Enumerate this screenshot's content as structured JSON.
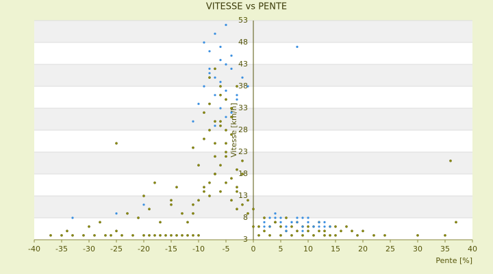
{
  "chart_data": {
    "type": "scatter",
    "title": "VITESSE vs PENTE",
    "x_label": "Pente [%]",
    "y_label": "Vitesse [km/h]",
    "xlim": [
      -40,
      40
    ],
    "xticks": [
      -40,
      -35,
      -30,
      -25,
      -20,
      -15,
      -10,
      -5,
      0,
      5,
      10,
      15,
      20,
      25,
      30,
      35,
      40
    ],
    "ylim": [
      3,
      53
    ],
    "yticks": [
      3,
      8,
      13,
      18,
      23,
      28,
      33,
      38,
      43,
      48,
      53
    ],
    "grid": true,
    "series": [
      {
        "color": "#8f8f10",
        "x": [
          -37,
          -35,
          -33,
          -31,
          -29,
          -27,
          -26,
          -24,
          -22,
          -20,
          -19,
          -18,
          -17,
          -16,
          -15,
          -14,
          -13,
          -12,
          -11,
          -10,
          -34,
          -30,
          -28,
          -25,
          -23,
          -21,
          -19,
          -17,
          -15,
          -13,
          -11,
          -9,
          -8,
          -7,
          -6,
          -5,
          -4,
          -3,
          -2,
          -1,
          -12,
          -11,
          -10,
          -9,
          -8,
          -7,
          -6,
          -5,
          -4,
          -3,
          -11,
          -10,
          -9,
          -8,
          -7,
          -6,
          -5,
          -4,
          -3,
          -2,
          -9,
          -8,
          -7,
          -6,
          -5,
          -4,
          -3,
          -8,
          -7,
          -6,
          -5,
          -4,
          -7,
          -6,
          -5,
          -25,
          -20,
          -18,
          -15,
          -14,
          0,
          1,
          2,
          3,
          4,
          5,
          6,
          7,
          8,
          9,
          10,
          11,
          12,
          13,
          14,
          15,
          16,
          17,
          18,
          19,
          20,
          22,
          24,
          2,
          4,
          6,
          8,
          10,
          12,
          14,
          1,
          3,
          5,
          7,
          9,
          11,
          13,
          15,
          0,
          -1,
          30,
          35,
          36,
          37,
          -2,
          -3
        ],
        "values": [
          4,
          4,
          4,
          4,
          4,
          4,
          4,
          4,
          4,
          4,
          4,
          4,
          4,
          4,
          4,
          4,
          4,
          4,
          4,
          4,
          5,
          6,
          7,
          5,
          9,
          8,
          10,
          7,
          12,
          9,
          11,
          15,
          13,
          18,
          14,
          16,
          12,
          10,
          11,
          9,
          7,
          9,
          12,
          14,
          16,
          18,
          20,
          22,
          17,
          15,
          24,
          20,
          26,
          28,
          22,
          30,
          25,
          27,
          19,
          21,
          32,
          34,
          30,
          36,
          28,
          33,
          38,
          40,
          42,
          38,
          35,
          31,
          25,
          29,
          23,
          25,
          13,
          16,
          11,
          15,
          6,
          6,
          5,
          6,
          7,
          6,
          5,
          6,
          5,
          6,
          5,
          6,
          5,
          5,
          4,
          6,
          5,
          6,
          5,
          4,
          5,
          4,
          4,
          8,
          7,
          8,
          7,
          6,
          7,
          6,
          4,
          4,
          4,
          4,
          4,
          4,
          4,
          4,
          10,
          12,
          4,
          4,
          21,
          7,
          18,
          14
        ]
      },
      {
        "color": "#3b8fe0",
        "x": [
          -9,
          -8,
          -7,
          -6,
          -5,
          -4,
          -8,
          -7,
          -6,
          -5,
          -9,
          -8,
          -7,
          -6,
          -5,
          -4,
          -3,
          -6,
          -5,
          -7,
          -2,
          -1,
          -4,
          -3,
          -10,
          -11,
          8,
          2,
          3,
          4,
          5,
          6,
          7,
          8,
          9,
          10,
          11,
          12,
          13,
          14,
          3,
          5,
          7,
          9,
          11,
          13,
          4,
          6,
          8,
          10,
          12,
          2,
          6,
          9,
          -20,
          -25,
          -33
        ],
        "values": [
          48,
          46,
          50,
          44,
          52,
          45,
          42,
          40,
          47,
          43,
          38,
          41,
          36,
          39,
          37,
          42,
          35,
          33,
          31,
          29,
          40,
          38,
          32,
          36,
          34,
          30,
          47,
          7,
          6,
          8,
          7,
          6,
          7,
          8,
          6,
          7,
          6,
          7,
          6,
          6,
          8,
          8,
          7,
          8,
          6,
          7,
          9,
          6,
          7,
          8,
          6,
          6,
          5,
          5,
          11,
          9,
          8
        ]
      }
    ]
  }
}
